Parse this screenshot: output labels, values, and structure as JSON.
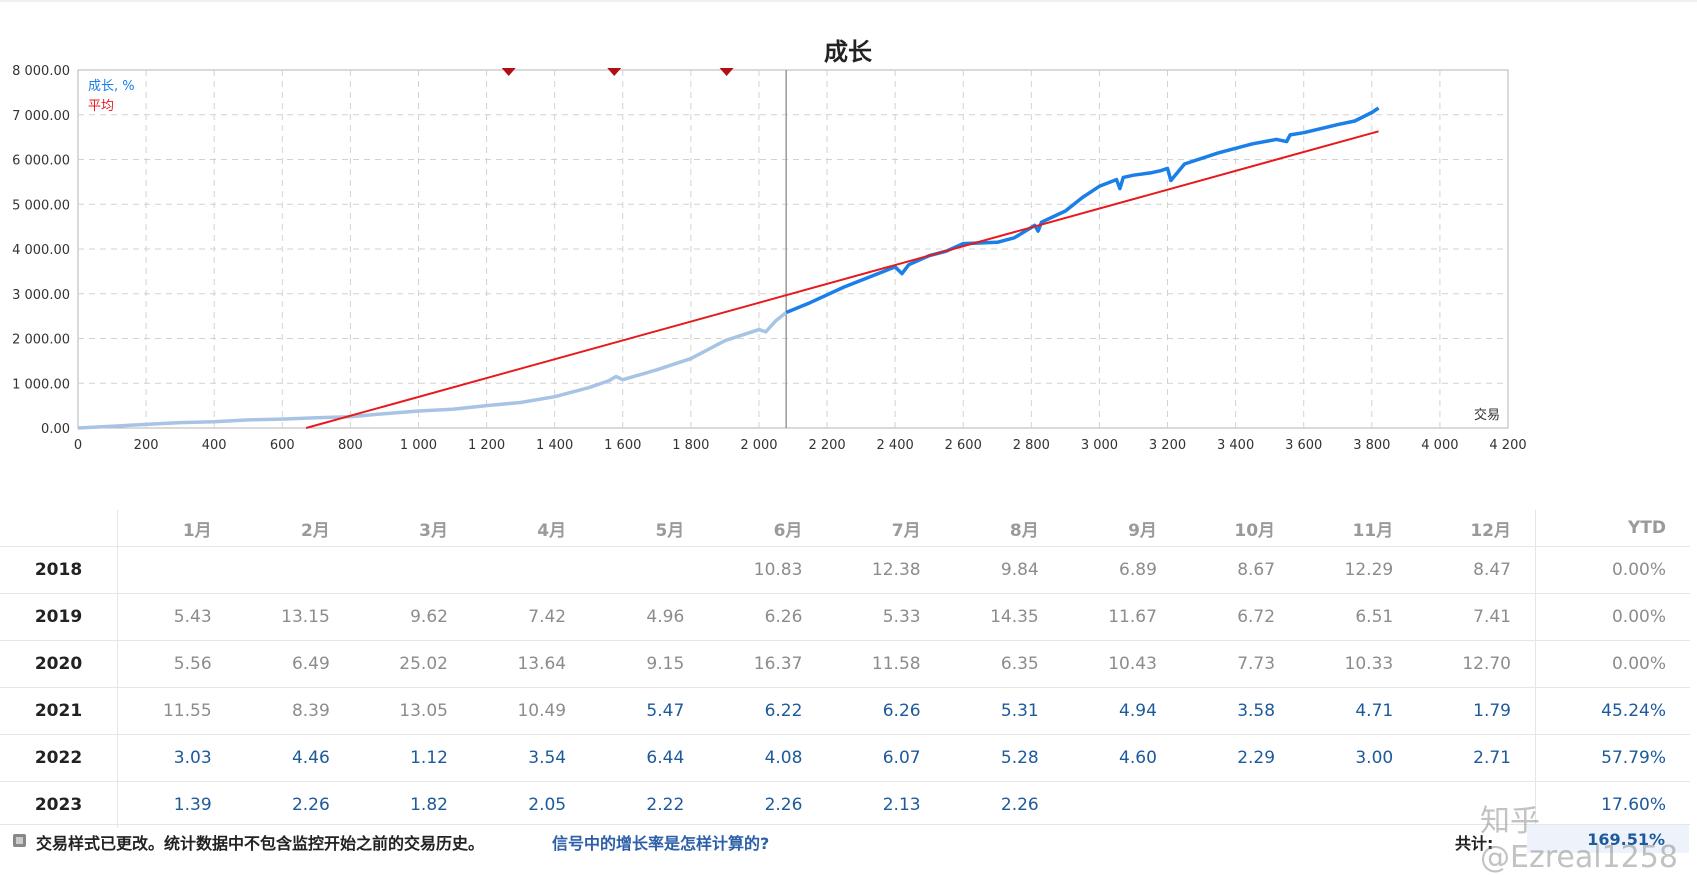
{
  "chart_data": {
    "type": "line",
    "title": "成长",
    "xlabel": "交易",
    "ylabel": "",
    "xlim": [
      0,
      4200
    ],
    "ylim": [
      0,
      8000
    ],
    "x_ticks": [
      0,
      200,
      400,
      600,
      800,
      1000,
      1200,
      1400,
      1600,
      1800,
      2000,
      2200,
      2400,
      2600,
      2800,
      3000,
      3200,
      3400,
      3600,
      3800,
      4000,
      4200
    ],
    "x_tick_labels": [
      "0",
      "200",
      "400",
      "600",
      "800",
      "1 000",
      "1 200",
      "1 400",
      "1 600",
      "1 800",
      "2 000",
      "2 200",
      "2 400",
      "2 600",
      "2 800",
      "3 000",
      "3 200",
      "3 400",
      "3 600",
      "3 800",
      "4 000",
      "4 200"
    ],
    "y_ticks": [
      0,
      1000,
      2000,
      3000,
      4000,
      5000,
      6000,
      7000,
      8000
    ],
    "y_tick_labels": [
      "0.00",
      "1 000.00",
      "2 000.00",
      "3 000.00",
      "4 000.00",
      "5 000.00",
      "6 000.00",
      "7 000.00",
      "8 000.00"
    ],
    "grid": true,
    "legend_position": "top-left",
    "monitoring_start_x": 2080,
    "markers_x": [
      1265,
      1575,
      1905
    ],
    "series": [
      {
        "name": "成长, %",
        "color": "#1a7fe8",
        "light_color": "#a8c4e4",
        "x": [
          0,
          100,
          200,
          300,
          400,
          500,
          600,
          700,
          800,
          900,
          1000,
          1100,
          1200,
          1300,
          1400,
          1500,
          1560,
          1580,
          1600,
          1700,
          1800,
          1900,
          2000,
          2020,
          2050,
          2080,
          2150,
          2250,
          2350,
          2400,
          2420,
          2440,
          2500,
          2550,
          2600,
          2700,
          2750,
          2800,
          2810,
          2820,
          2830,
          2900,
          2950,
          3000,
          3050,
          3060,
          3070,
          3100,
          3150,
          3180,
          3200,
          3210,
          3250,
          3350,
          3450,
          3520,
          3550,
          3560,
          3600,
          3700,
          3750,
          3800,
          3820
        ],
        "y": [
          0,
          40,
          80,
          120,
          140,
          180,
          200,
          230,
          250,
          320,
          380,
          420,
          500,
          570,
          700,
          900,
          1060,
          1150,
          1080,
          1300,
          1550,
          1950,
          2200,
          2150,
          2400,
          2580,
          2800,
          3150,
          3450,
          3600,
          3450,
          3650,
          3850,
          3950,
          4120,
          4150,
          4250,
          4480,
          4530,
          4400,
          4600,
          4850,
          5150,
          5400,
          5550,
          5350,
          5600,
          5650,
          5700,
          5750,
          5800,
          5530,
          5900,
          6150,
          6350,
          6450,
          6400,
          6550,
          6600,
          6780,
          6860,
          7050,
          7150
        ]
      },
      {
        "name": "平均",
        "color": "#e8191c",
        "x": [
          670,
          3820
        ],
        "y": [
          0,
          6630
        ]
      }
    ]
  },
  "table": {
    "months": [
      "1月",
      "2月",
      "3月",
      "4月",
      "5月",
      "6月",
      "7月",
      "8月",
      "9月",
      "10月",
      "11月",
      "12月"
    ],
    "ytd_label": "YTD",
    "rows": [
      {
        "year": "2018",
        "values": [
          "",
          "",
          "",
          "",
          "",
          "10.83",
          "12.38",
          "9.84",
          "6.89",
          "8.67",
          "12.29",
          "8.47"
        ],
        "current": [
          false,
          false,
          false,
          false,
          false,
          false,
          false,
          false,
          false,
          false,
          false,
          false
        ],
        "ytd": "0.00%",
        "ytd_current": false
      },
      {
        "year": "2019",
        "values": [
          "5.43",
          "13.15",
          "9.62",
          "7.42",
          "4.96",
          "6.26",
          "5.33",
          "14.35",
          "11.67",
          "6.72",
          "6.51",
          "7.41"
        ],
        "current": [
          false,
          false,
          false,
          false,
          false,
          false,
          false,
          false,
          false,
          false,
          false,
          false
        ],
        "ytd": "0.00%",
        "ytd_current": false
      },
      {
        "year": "2020",
        "values": [
          "5.56",
          "6.49",
          "25.02",
          "13.64",
          "9.15",
          "16.37",
          "11.58",
          "6.35",
          "10.43",
          "7.73",
          "10.33",
          "12.70"
        ],
        "current": [
          false,
          false,
          false,
          false,
          false,
          false,
          false,
          false,
          false,
          false,
          false,
          false
        ],
        "ytd": "0.00%",
        "ytd_current": false
      },
      {
        "year": "2021",
        "values": [
          "11.55",
          "8.39",
          "13.05",
          "10.49",
          "5.47",
          "6.22",
          "6.26",
          "5.31",
          "4.94",
          "3.58",
          "4.71",
          "1.79"
        ],
        "current": [
          false,
          false,
          false,
          false,
          true,
          true,
          true,
          true,
          true,
          true,
          true,
          true
        ],
        "ytd": "45.24%",
        "ytd_current": true
      },
      {
        "year": "2022",
        "values": [
          "3.03",
          "4.46",
          "1.12",
          "3.54",
          "6.44",
          "4.08",
          "6.07",
          "5.28",
          "4.60",
          "2.29",
          "3.00",
          "2.71"
        ],
        "current": [
          true,
          true,
          true,
          true,
          true,
          true,
          true,
          true,
          true,
          true,
          true,
          true
        ],
        "ytd": "57.79%",
        "ytd_current": true
      },
      {
        "year": "2023",
        "values": [
          "1.39",
          "2.26",
          "1.82",
          "2.05",
          "2.22",
          "2.26",
          "2.13",
          "2.26",
          "",
          "",
          "",
          ""
        ],
        "current": [
          true,
          true,
          true,
          true,
          true,
          true,
          true,
          true,
          true,
          true,
          true,
          true
        ],
        "ytd": "17.60%",
        "ytd_current": true
      }
    ]
  },
  "footer": {
    "note": "交易样式已更改。统计数据中不包含监控开始之前的交易历史。",
    "link": "信号中的增长率是怎样计算的?",
    "total_label": "共计:",
    "total_value": "169.51%"
  },
  "watermark": "知乎 @Ezreal1258"
}
